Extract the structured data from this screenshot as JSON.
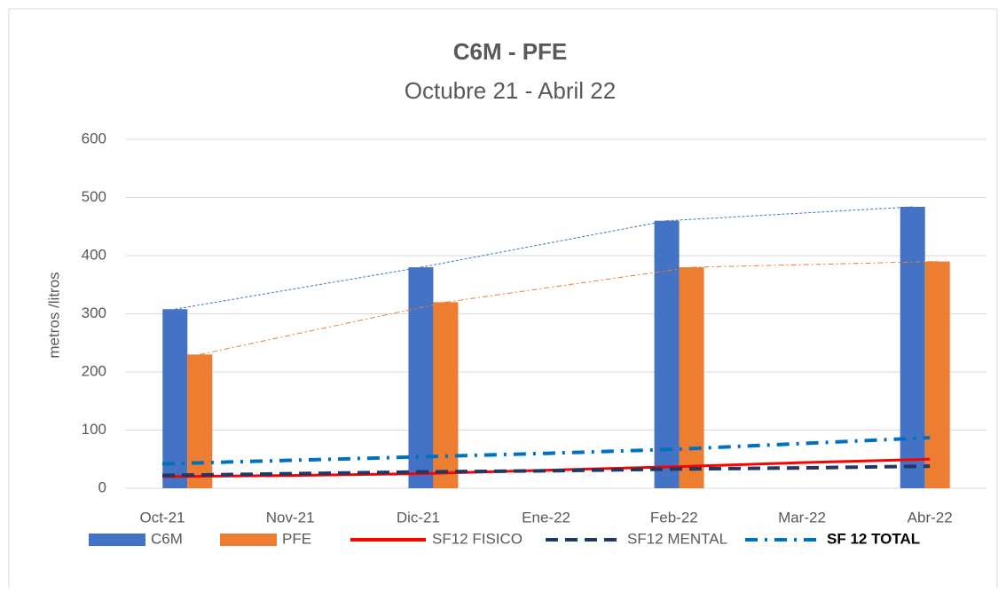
{
  "chart_data": {
    "type": "bar",
    "title": "C6M - PFE",
    "subtitle": "Octubre 21 - Abril 22",
    "y_label": "metros /litros",
    "categories": [
      "Oct-21",
      "Nov-21",
      "Dic-21",
      "Ene-22",
      "Feb-22",
      "Mar-22",
      "Abr-22"
    ],
    "series": [
      {
        "name": "C6M",
        "type": "bar",
        "color": "#4472c4",
        "values": [
          308,
          null,
          380,
          null,
          460,
          null,
          484
        ]
      },
      {
        "name": "PFE",
        "type": "bar",
        "color": "#ed7d31",
        "values": [
          230,
          null,
          320,
          null,
          380,
          null,
          390
        ]
      },
      {
        "name": "SF12 FISICO",
        "type": "line",
        "color": "#ff0000",
        "dash": "solid",
        "values": [
          20,
          22,
          25,
          31,
          37,
          44,
          50
        ]
      },
      {
        "name": "SF12 MENTAL",
        "type": "line",
        "color": "#203864",
        "dash": "dash",
        "values": [
          22,
          25,
          28,
          30,
          33,
          35,
          38
        ]
      },
      {
        "name": "SF 12 TOTAL",
        "type": "line",
        "color": "#0070c0",
        "dash": "dashdot",
        "values": [
          42,
          48,
          54,
          60,
          67,
          77,
          87
        ]
      }
    ],
    "ylim": [
      0,
      600
    ],
    "yticks": [
      0,
      100,
      200,
      300,
      400,
      500,
      600
    ],
    "grid": true,
    "legend": "bottom"
  }
}
